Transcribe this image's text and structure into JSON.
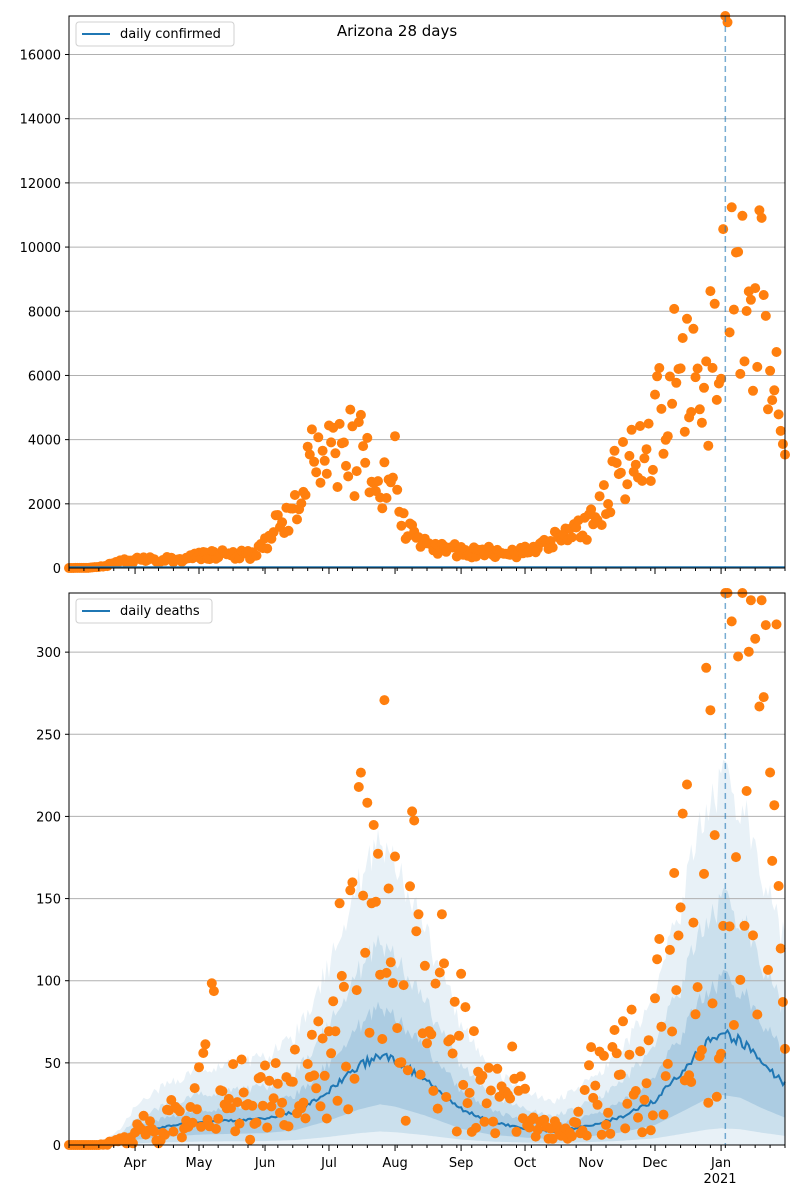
{
  "colors": {
    "line": "#1f77b4",
    "points": "#ff7f0e",
    "band": "#1f77b4",
    "grid": "#b0b0b0",
    "marker_line": "#1f77b4"
  },
  "chart_data": [
    {
      "type": "scatter",
      "title": "Arizona 28 days",
      "legend_label": "daily confirmed",
      "legend_position": "top-left",
      "grid": "horizontal",
      "ylim": [
        0,
        17200
      ],
      "y_ticks": [
        0,
        2000,
        4000,
        6000,
        8000,
        10000,
        12000,
        14000,
        16000
      ],
      "y_tick_labels": [
        "0",
        "2000",
        "4000",
        "6000",
        "8000",
        "10000",
        "12000",
        "14000",
        "16000"
      ],
      "x_start": "2020-03-01",
      "x_end": "2021-01-31",
      "marker_date": "2021-01-03",
      "points_key": [
        [
          "2020-03-01",
          0
        ],
        [
          "2020-03-10",
          5
        ],
        [
          "2020-03-15",
          30
        ],
        [
          "2020-03-20",
          100
        ],
        [
          "2020-03-25",
          180
        ],
        [
          "2020-03-28",
          220
        ],
        [
          "2020-04-01",
          250
        ],
        [
          "2020-04-05",
          250
        ],
        [
          "2020-04-10",
          260
        ],
        [
          "2020-04-15",
          270
        ],
        [
          "2020-04-20",
          220
        ],
        [
          "2020-04-25",
          300
        ],
        [
          "2020-04-29",
          350
        ],
        [
          "2020-05-01",
          360
        ],
        [
          "2020-05-05",
          400
        ],
        [
          "2020-05-10",
          450
        ],
        [
          "2020-05-15",
          480
        ],
        [
          "2020-05-20",
          400
        ],
        [
          "2020-05-25",
          420
        ],
        [
          "2020-05-28",
          450
        ],
        [
          "2020-06-01",
          700
        ],
        [
          "2020-06-04",
          1100
        ],
        [
          "2020-06-07",
          1500
        ],
        [
          "2020-06-10",
          1300
        ],
        [
          "2020-06-13",
          1600
        ],
        [
          "2020-06-16",
          1800
        ],
        [
          "2020-06-19",
          2400
        ],
        [
          "2020-06-22",
          3200
        ],
        [
          "2020-06-25",
          3300
        ],
        [
          "2020-06-28",
          3600
        ],
        [
          "2020-07-01",
          4700
        ],
        [
          "2020-07-03",
          4400
        ],
        [
          "2020-07-05",
          3600
        ],
        [
          "2020-07-08",
          3500
        ],
        [
          "2020-07-10",
          4100
        ],
        [
          "2020-07-13",
          3000
        ],
        [
          "2020-07-16",
          3900
        ],
        [
          "2020-07-19",
          3300
        ],
        [
          "2020-07-22",
          2300
        ],
        [
          "2020-07-25",
          2200
        ],
        [
          "2020-07-28",
          2600
        ],
        [
          "2020-08-01",
          3200
        ],
        [
          "2020-08-04",
          1500
        ],
        [
          "2020-08-07",
          1200
        ],
        [
          "2020-08-10",
          1000
        ],
        [
          "2020-08-13",
          900
        ],
        [
          "2020-08-16",
          900
        ],
        [
          "2020-08-19",
          700
        ],
        [
          "2020-08-22",
          600
        ],
        [
          "2020-08-25",
          700
        ],
        [
          "2020-08-28",
          600
        ],
        [
          "2020-09-01",
          500
        ],
        [
          "2020-09-05",
          500
        ],
        [
          "2020-09-10",
          500
        ],
        [
          "2020-09-15",
          500
        ],
        [
          "2020-09-20",
          500
        ],
        [
          "2020-09-25",
          450
        ],
        [
          "2020-10-01",
          550
        ],
        [
          "2020-10-05",
          650
        ],
        [
          "2020-10-10",
          750
        ],
        [
          "2020-10-15",
          850
        ],
        [
          "2020-10-20",
          950
        ],
        [
          "2020-10-25",
          1100
        ],
        [
          "2020-10-30",
          1300
        ],
        [
          "2020-11-05",
          1900
        ],
        [
          "2020-11-10",
          2600
        ],
        [
          "2020-11-15",
          3000
        ],
        [
          "2020-11-20",
          3400
        ],
        [
          "2020-11-25",
          4100
        ],
        [
          "2020-11-28",
          4000
        ],
        [
          "2020-12-01",
          4300
        ],
        [
          "2020-12-04",
          5500
        ],
        [
          "2020-12-07",
          5200
        ],
        [
          "2020-12-10",
          6000
        ],
        [
          "2020-12-13",
          5800
        ],
        [
          "2020-12-16",
          6200
        ],
        [
          "2020-12-19",
          7000
        ],
        [
          "2020-12-22",
          6500
        ],
        [
          "2020-12-25",
          5000
        ],
        [
          "2020-12-28",
          7500
        ],
        [
          "2021-01-01",
          8500
        ],
        [
          "2021-01-03",
          17200
        ],
        [
          "2021-01-05",
          9500
        ],
        [
          "2021-01-07",
          11200
        ],
        [
          "2021-01-10",
          8500
        ],
        [
          "2021-01-13",
          7500
        ],
        [
          "2021-01-16",
          7000
        ],
        [
          "2021-01-19",
          9000
        ],
        [
          "2021-01-22",
          6500
        ],
        [
          "2021-01-25",
          5500
        ],
        [
          "2021-01-28",
          5000
        ],
        [
          "2021-01-31",
          5000
        ]
      ]
    },
    {
      "type": "scatter",
      "title": "",
      "legend_label": "daily deaths",
      "legend_position": "top-left",
      "grid": "horizontal",
      "ylim": [
        0,
        336
      ],
      "y_ticks": [
        0,
        50,
        100,
        150,
        200,
        250,
        300
      ],
      "y_tick_labels": [
        "0",
        "50",
        "100",
        "150",
        "200",
        "250",
        "300"
      ],
      "x_start": "2020-03-01",
      "x_end": "2021-01-31",
      "marker_date": "2021-01-03",
      "x_ticks": [
        "2020-04-01",
        "2020-05-01",
        "2020-06-01",
        "2020-07-01",
        "2020-08-01",
        "2020-09-01",
        "2020-10-01",
        "2020-11-01",
        "2020-12-01",
        "2021-01-01"
      ],
      "x_tick_labels": [
        "Apr",
        "May",
        "Jun",
        "Jul",
        "Aug",
        "Sep",
        "Oct",
        "Nov",
        "Dec",
        "Jan"
      ],
      "x_year_label": "2021",
      "mean_line_key": [
        [
          "2020-03-01",
          0
        ],
        [
          "2020-03-15",
          0
        ],
        [
          "2020-03-25",
          3
        ],
        [
          "2020-04-01",
          7
        ],
        [
          "2020-04-15",
          11
        ],
        [
          "2020-05-01",
          14
        ],
        [
          "2020-05-15",
          15
        ],
        [
          "2020-06-01",
          16
        ],
        [
          "2020-06-15",
          20
        ],
        [
          "2020-07-01",
          33
        ],
        [
          "2020-07-15",
          48
        ],
        [
          "2020-07-25",
          55
        ],
        [
          "2020-08-01",
          52
        ],
        [
          "2020-08-15",
          40
        ],
        [
          "2020-09-01",
          22
        ],
        [
          "2020-09-15",
          14
        ],
        [
          "2020-10-01",
          10
        ],
        [
          "2020-10-15",
          8
        ],
        [
          "2020-11-01",
          12
        ],
        [
          "2020-11-15",
          17
        ],
        [
          "2020-12-01",
          27
        ],
        [
          "2020-12-15",
          47
        ],
        [
          "2020-12-25",
          62
        ],
        [
          "2021-01-01",
          68
        ],
        [
          "2021-01-10",
          64
        ],
        [
          "2021-01-20",
          50
        ],
        [
          "2021-01-31",
          37
        ]
      ],
      "points_key": [
        [
          "2020-03-15",
          0
        ],
        [
          "2020-03-28",
          3
        ],
        [
          "2020-04-05",
          10
        ],
        [
          "2020-04-12",
          6
        ],
        [
          "2020-04-20",
          18
        ],
        [
          "2020-04-26",
          12
        ],
        [
          "2020-05-03",
          32
        ],
        [
          "2020-05-08",
          67
        ],
        [
          "2020-05-12",
          22
        ],
        [
          "2020-05-18",
          42
        ],
        [
          "2020-05-24",
          15
        ],
        [
          "2020-06-01",
          27
        ],
        [
          "2020-06-04",
          40
        ],
        [
          "2020-06-10",
          20
        ],
        [
          "2020-06-15",
          33
        ],
        [
          "2020-06-20",
          25
        ],
        [
          "2020-06-25",
          45
        ],
        [
          "2020-07-01",
          80
        ],
        [
          "2020-07-05",
          98
        ],
        [
          "2020-07-08",
          75
        ],
        [
          "2020-07-12",
          91
        ],
        [
          "2020-07-16",
          147
        ],
        [
          "2020-07-19",
          134
        ],
        [
          "2020-07-22",
          143
        ],
        [
          "2020-07-25",
          104
        ],
        [
          "2020-07-28",
          172
        ],
        [
          "2020-08-02",
          87
        ],
        [
          "2020-08-06",
          56
        ],
        [
          "2020-08-10",
          148
        ],
        [
          "2020-08-15",
          105
        ],
        [
          "2020-08-19",
          68
        ],
        [
          "2020-08-24",
          104
        ],
        [
          "2020-08-28",
          48
        ],
        [
          "2020-09-03",
          65
        ],
        [
          "2020-09-08",
          35
        ],
        [
          "2020-09-15",
          25
        ],
        [
          "2020-09-20",
          42
        ],
        [
          "2020-09-26",
          35
        ],
        [
          "2020-10-02",
          20
        ],
        [
          "2020-10-08",
          12
        ],
        [
          "2020-10-15",
          8
        ],
        [
          "2020-10-22",
          5
        ],
        [
          "2020-10-28",
          15
        ],
        [
          "2020-11-02",
          45
        ],
        [
          "2020-11-06",
          38
        ],
        [
          "2020-11-10",
          36
        ],
        [
          "2020-11-15",
          44
        ],
        [
          "2020-11-20",
          50
        ],
        [
          "2020-11-25",
          43
        ],
        [
          "2020-12-01",
          55
        ],
        [
          "2020-12-05",
          108
        ],
        [
          "2020-12-10",
          90
        ],
        [
          "2020-12-15",
          145
        ],
        [
          "2020-12-18",
          118
        ],
        [
          "2020-12-21",
          115
        ],
        [
          "2020-12-25",
          171
        ],
        [
          "2020-12-28",
          146
        ],
        [
          "2021-01-03",
          253
        ],
        [
          "2021-01-05",
          297
        ],
        [
          "2021-01-08",
          197
        ],
        [
          "2021-01-10",
          336
        ],
        [
          "2021-01-13",
          185
        ],
        [
          "2021-01-16",
          262
        ],
        [
          "2021-01-19",
          169
        ],
        [
          "2021-01-22",
          210
        ],
        [
          "2021-01-25",
          196
        ],
        [
          "2021-01-28",
          176
        ],
        [
          "2021-01-31",
          203
        ]
      ]
    }
  ]
}
